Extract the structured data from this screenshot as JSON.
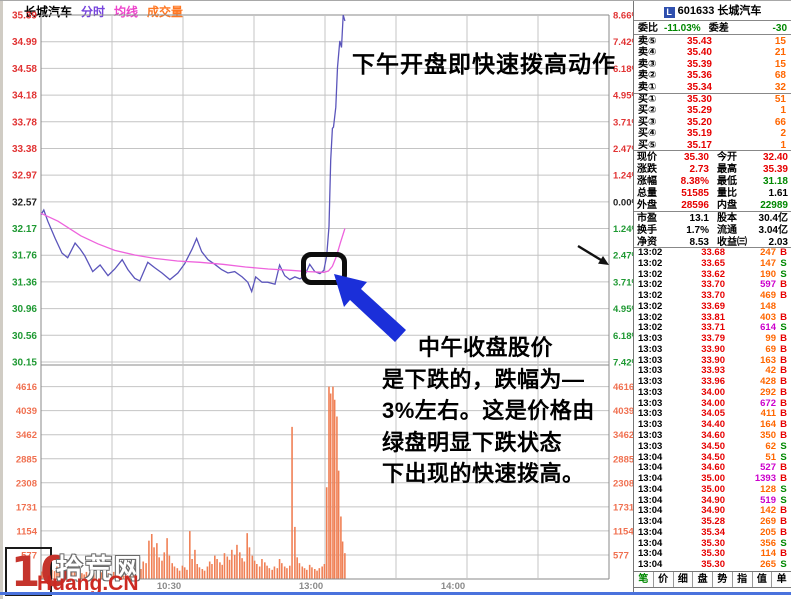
{
  "colors": {
    "axis_red": "#e13333",
    "axis_green": "#1f9933",
    "axis_black": "#222222",
    "vol_label": "#f07050",
    "time_label": "#8a8a8a",
    "grid": "#c4c4c4",
    "frame": "#8a8a8a",
    "price_line": "#5b55bb",
    "avg_line": "#ee63dd",
    "vol_bar": "#f08055",
    "red": "#e60000",
    "green": "#008800",
    "orange": "#ff6600",
    "purple": "#cc00cc",
    "black": "#000000"
  },
  "legend": [
    {
      "label": "长城汽车",
      "color": "#000000"
    },
    {
      "label": "分时",
      "color": "#7744dd"
    },
    {
      "label": "均线",
      "color": "#ee44cc"
    },
    {
      "label": "成交量",
      "color": "#ff7722"
    }
  ],
  "chart_data": {
    "type": "line",
    "title": "长城汽车 分时走势",
    "prev_close": 32.57,
    "price_axis": [
      {
        "price": "35.39",
        "pct": "8.66%",
        "tone": "red"
      },
      {
        "price": "34.99",
        "pct": "7.42%",
        "tone": "red"
      },
      {
        "price": "34.58",
        "pct": "6.18%",
        "tone": "red"
      },
      {
        "price": "34.18",
        "pct": "4.95%",
        "tone": "red"
      },
      {
        "price": "33.78",
        "pct": "3.71%",
        "tone": "red"
      },
      {
        "price": "33.38",
        "pct": "2.47%",
        "tone": "red"
      },
      {
        "price": "32.97",
        "pct": "1.24%",
        "tone": "red"
      },
      {
        "price": "32.57",
        "pct": "0.00%",
        "tone": "black"
      },
      {
        "price": "32.17",
        "pct": "1.24%",
        "tone": "green"
      },
      {
        "price": "31.76",
        "pct": "2.47%",
        "tone": "green"
      },
      {
        "price": "31.36",
        "pct": "3.71%",
        "tone": "green"
      },
      {
        "price": "30.96",
        "pct": "4.95%",
        "tone": "green"
      },
      {
        "price": "30.56",
        "pct": "6.18%",
        "tone": "green"
      },
      {
        "price": "30.15",
        "pct": "7.42%",
        "tone": "green"
      }
    ],
    "volume_axis": [
      "4616",
      "4039",
      "3462",
      "2885",
      "2308",
      "1731",
      "1154",
      "577"
    ],
    "time_labels": [
      {
        "text": "10:30",
        "grid": 2
      },
      {
        "text": "13:00",
        "grid": 4
      },
      {
        "text": "14:00",
        "grid": 6
      }
    ],
    "series": [
      {
        "name": "price",
        "points": [
          [
            0.0,
            32.38
          ],
          [
            0.005,
            32.45
          ],
          [
            0.012,
            32.28
          ],
          [
            0.025,
            32.02
          ],
          [
            0.037,
            31.8
          ],
          [
            0.047,
            31.73
          ],
          [
            0.06,
            31.95
          ],
          [
            0.069,
            31.86
          ],
          [
            0.077,
            31.76
          ],
          [
            0.091,
            31.52
          ],
          [
            0.104,
            31.62
          ],
          [
            0.118,
            31.46
          ],
          [
            0.13,
            31.56
          ],
          [
            0.143,
            31.7
          ],
          [
            0.153,
            31.55
          ],
          [
            0.165,
            31.42
          ],
          [
            0.174,
            31.38
          ],
          [
            0.188,
            31.66
          ],
          [
            0.2,
            31.58
          ],
          [
            0.213,
            31.5
          ],
          [
            0.227,
            31.4
          ],
          [
            0.241,
            31.5
          ],
          [
            0.253,
            31.64
          ],
          [
            0.266,
            31.86
          ],
          [
            0.274,
            32.02
          ],
          [
            0.283,
            31.82
          ],
          [
            0.294,
            31.7
          ],
          [
            0.306,
            31.63
          ],
          [
            0.318,
            31.55
          ],
          [
            0.329,
            31.5
          ],
          [
            0.341,
            31.52
          ],
          [
            0.354,
            31.44
          ],
          [
            0.364,
            31.36
          ],
          [
            0.371,
            31.22
          ],
          [
            0.378,
            31.44
          ],
          [
            0.389,
            31.36
          ],
          [
            0.399,
            31.36
          ],
          [
            0.412,
            31.33
          ],
          [
            0.42,
            31.62
          ],
          [
            0.429,
            31.46
          ],
          [
            0.438,
            31.4
          ],
          [
            0.447,
            31.44
          ],
          [
            0.456,
            31.41
          ],
          [
            0.464,
            31.46
          ],
          [
            0.473,
            31.63
          ],
          [
            0.482,
            31.52
          ],
          [
            0.491,
            31.49
          ],
          [
            0.498,
            31.54
          ],
          [
            0.503,
            31.76
          ],
          [
            0.507,
            32.2
          ],
          [
            0.51,
            33.2
          ],
          [
            0.513,
            33.68
          ],
          [
            0.515,
            33.7
          ],
          [
            0.519,
            34.0
          ],
          [
            0.522,
            34.6
          ],
          [
            0.526,
            35.0
          ],
          [
            0.529,
            34.9
          ],
          [
            0.532,
            35.39
          ],
          [
            0.535,
            35.3
          ]
        ]
      },
      {
        "name": "average",
        "points": [
          [
            0.0,
            32.4
          ],
          [
            0.03,
            32.28
          ],
          [
            0.07,
            32.06
          ],
          [
            0.1,
            31.94
          ],
          [
            0.13,
            31.84
          ],
          [
            0.165,
            31.77
          ],
          [
            0.2,
            31.72
          ],
          [
            0.24,
            31.68
          ],
          [
            0.28,
            31.66
          ],
          [
            0.32,
            31.63
          ],
          [
            0.36,
            31.59
          ],
          [
            0.4,
            31.56
          ],
          [
            0.44,
            31.54
          ],
          [
            0.47,
            31.52
          ],
          [
            0.498,
            31.51
          ],
          [
            0.506,
            31.53
          ],
          [
            0.513,
            31.6
          ],
          [
            0.52,
            31.75
          ],
          [
            0.527,
            31.95
          ],
          [
            0.535,
            32.17
          ]
        ]
      }
    ],
    "volume_bars": [
      [
        0.002,
        180
      ],
      [
        0.006,
        320
      ],
      [
        0.011,
        260
      ],
      [
        0.015,
        150
      ],
      [
        0.019,
        220
      ],
      [
        0.024,
        190
      ],
      [
        0.028,
        300
      ],
      [
        0.032,
        160
      ],
      [
        0.037,
        140
      ],
      [
        0.041,
        250
      ],
      [
        0.046,
        210
      ],
      [
        0.05,
        120
      ],
      [
        0.054,
        180
      ],
      [
        0.059,
        160
      ],
      [
        0.063,
        90
      ],
      [
        0.067,
        200
      ],
      [
        0.072,
        140
      ],
      [
        0.076,
        110
      ],
      [
        0.08,
        170
      ],
      [
        0.085,
        130
      ],
      [
        0.089,
        100
      ],
      [
        0.093,
        150
      ],
      [
        0.098,
        120
      ],
      [
        0.102,
        90
      ],
      [
        0.106,
        160
      ],
      [
        0.111,
        110
      ],
      [
        0.115,
        80
      ],
      [
        0.119,
        140
      ],
      [
        0.124,
        100
      ],
      [
        0.128,
        170
      ],
      [
        0.132,
        120
      ],
      [
        0.137,
        90
      ],
      [
        0.141,
        110
      ],
      [
        0.145,
        80
      ],
      [
        0.15,
        130
      ],
      [
        0.154,
        100
      ],
      [
        0.158,
        70
      ],
      [
        0.163,
        120
      ],
      [
        0.167,
        90
      ],
      [
        0.171,
        300
      ],
      [
        0.176,
        240
      ],
      [
        0.18,
        420
      ],
      [
        0.185,
        380
      ],
      [
        0.19,
        920
      ],
      [
        0.195,
        1080
      ],
      [
        0.199,
        760
      ],
      [
        0.204,
        860
      ],
      [
        0.208,
        520
      ],
      [
        0.213,
        440
      ],
      [
        0.217,
        640
      ],
      [
        0.222,
        980
      ],
      [
        0.226,
        560
      ],
      [
        0.231,
        380
      ],
      [
        0.235,
        300
      ],
      [
        0.24,
        260
      ],
      [
        0.244,
        200
      ],
      [
        0.249,
        320
      ],
      [
        0.253,
        280
      ],
      [
        0.257,
        220
      ],
      [
        0.262,
        1150
      ],
      [
        0.266,
        480
      ],
      [
        0.271,
        700
      ],
      [
        0.275,
        360
      ],
      [
        0.279,
        280
      ],
      [
        0.284,
        240
      ],
      [
        0.288,
        200
      ],
      [
        0.293,
        300
      ],
      [
        0.297,
        420
      ],
      [
        0.301,
        360
      ],
      [
        0.306,
        560
      ],
      [
        0.31,
        480
      ],
      [
        0.315,
        400
      ],
      [
        0.319,
        340
      ],
      [
        0.323,
        620
      ],
      [
        0.328,
        540
      ],
      [
        0.332,
        460
      ],
      [
        0.336,
        700
      ],
      [
        0.341,
        580
      ],
      [
        0.345,
        820
      ],
      [
        0.35,
        640
      ],
      [
        0.354,
        500
      ],
      [
        0.358,
        420
      ],
      [
        0.363,
        1100
      ],
      [
        0.367,
        760
      ],
      [
        0.372,
        560
      ],
      [
        0.376,
        440
      ],
      [
        0.38,
        360
      ],
      [
        0.385,
        300
      ],
      [
        0.389,
        480
      ],
      [
        0.394,
        400
      ],
      [
        0.398,
        320
      ],
      [
        0.402,
        260
      ],
      [
        0.407,
        220
      ],
      [
        0.411,
        300
      ],
      [
        0.416,
        260
      ],
      [
        0.42,
        480
      ],
      [
        0.424,
        380
      ],
      [
        0.429,
        300
      ],
      [
        0.433,
        260
      ],
      [
        0.438,
        320
      ],
      [
        0.442,
        3650
      ],
      [
        0.447,
        1250
      ],
      [
        0.451,
        520
      ],
      [
        0.455,
        380
      ],
      [
        0.46,
        300
      ],
      [
        0.464,
        260
      ],
      [
        0.468,
        220
      ],
      [
        0.473,
        340
      ],
      [
        0.477,
        280
      ],
      [
        0.482,
        240
      ],
      [
        0.486,
        200
      ],
      [
        0.49,
        260
      ],
      [
        0.495,
        300
      ],
      [
        0.499,
        360
      ],
      [
        0.503,
        2200
      ],
      [
        0.507,
        4616
      ],
      [
        0.51,
        4450
      ],
      [
        0.514,
        4616
      ],
      [
        0.517,
        4300
      ],
      [
        0.521,
        3900
      ],
      [
        0.524,
        2600
      ],
      [
        0.528,
        1500
      ],
      [
        0.531,
        900
      ],
      [
        0.535,
        620
      ]
    ]
  },
  "annotations": {
    "top_text": "下午开盘即快速拨高动作",
    "body_lines": [
      "中午收盘股价",
      "是下跌的，跌幅为—",
      "3%左右。这是价格由",
      "绿盘明显下跌状态",
      "下出现的快速拨高。"
    ]
  },
  "watermark": {
    "num": "10",
    "site": "拾荒网",
    "domain": "Huang.CN"
  },
  "panel": {
    "code": "601633",
    "name": "长城汽车",
    "weibi_label": "委比",
    "weibi_value": "-11.03%",
    "weicha_label": "委差",
    "weicha_value": "-30",
    "asks": [
      {
        "label": "卖⑤",
        "price": "35.43",
        "vol": "15"
      },
      {
        "label": "卖④",
        "price": "35.40",
        "vol": "21"
      },
      {
        "label": "卖③",
        "price": "35.39",
        "vol": "15"
      },
      {
        "label": "卖②",
        "price": "35.36",
        "vol": "68"
      },
      {
        "label": "卖①",
        "price": "35.34",
        "vol": "32"
      }
    ],
    "bids": [
      {
        "label": "买①",
        "price": "35.30",
        "vol": "51"
      },
      {
        "label": "买②",
        "price": "35.29",
        "vol": "1"
      },
      {
        "label": "买③",
        "price": "35.20",
        "vol": "66"
      },
      {
        "label": "买④",
        "price": "35.19",
        "vol": "2"
      },
      {
        "label": "买⑤",
        "price": "35.17",
        "vol": "1"
      }
    ],
    "info1": [
      {
        "l1": "现价",
        "v1": "35.30",
        "c1": "red",
        "l2": "今开",
        "v2": "32.40",
        "c2": "red"
      },
      {
        "l1": "涨跌",
        "v1": "2.73",
        "c1": "red",
        "l2": "最高",
        "v2": "35.39",
        "c2": "red"
      },
      {
        "l1": "涨幅",
        "v1": "8.38%",
        "c1": "red",
        "l2": "最低",
        "v2": "31.18",
        "c2": "green"
      },
      {
        "l1": "总量",
        "v1": "51585",
        "c1": "red",
        "l2": "量比",
        "v2": "1.61",
        "c2": "black"
      },
      {
        "l1": "外盘",
        "v1": "28596",
        "c1": "red",
        "l2": "内盘",
        "v2": "22989",
        "c2": "green"
      }
    ],
    "info2": [
      {
        "l1": "市盈",
        "v1": "13.1",
        "c1": "black",
        "l2": "股本",
        "v2": "30.4亿",
        "c2": "black"
      },
      {
        "l1": "换手",
        "v1": "1.7%",
        "c1": "black",
        "l2": "流通",
        "v2": "3.04亿",
        "c2": "black"
      },
      {
        "l1": "净资",
        "v1": "8.53",
        "c1": "black",
        "l2": "收益㈢",
        "v2": "2.03",
        "c2": "black"
      }
    ],
    "ticks": [
      {
        "t": "13:02",
        "p": "33.68",
        "v": "247",
        "vc": "orange",
        "s": "B"
      },
      {
        "t": "13:02",
        "p": "33.65",
        "v": "147",
        "vc": "orange",
        "s": "S"
      },
      {
        "t": "13:02",
        "p": "33.62",
        "v": "190",
        "vc": "orange",
        "s": "S"
      },
      {
        "t": "13:02",
        "p": "33.70",
        "v": "597",
        "vc": "purple",
        "s": "B"
      },
      {
        "t": "13:02",
        "p": "33.70",
        "v": "469",
        "vc": "orange",
        "s": "B"
      },
      {
        "t": "13:02",
        "p": "33.69",
        "v": "148",
        "vc": "orange",
        "s": ""
      },
      {
        "t": "13:02",
        "p": "33.81",
        "v": "403",
        "vc": "orange",
        "s": "B"
      },
      {
        "t": "13:02",
        "p": "33.71",
        "v": "614",
        "vc": "purple",
        "s": "S"
      },
      {
        "t": "13:03",
        "p": "33.79",
        "v": "99",
        "vc": "orange",
        "s": "B"
      },
      {
        "t": "13:03",
        "p": "33.90",
        "v": "69",
        "vc": "orange",
        "s": "B"
      },
      {
        "t": "13:03",
        "p": "33.90",
        "v": "163",
        "vc": "orange",
        "s": "B"
      },
      {
        "t": "13:03",
        "p": "33.93",
        "v": "42",
        "vc": "orange",
        "s": "B"
      },
      {
        "t": "13:03",
        "p": "33.96",
        "v": "428",
        "vc": "orange",
        "s": "B"
      },
      {
        "t": "13:03",
        "p": "34.00",
        "v": "292",
        "vc": "orange",
        "s": "B"
      },
      {
        "t": "13:03",
        "p": "34.00",
        "v": "672",
        "vc": "purple",
        "s": "B"
      },
      {
        "t": "13:03",
        "p": "34.05",
        "v": "411",
        "vc": "orange",
        "s": "B"
      },
      {
        "t": "13:03",
        "p": "34.40",
        "v": "164",
        "vc": "orange",
        "s": "B"
      },
      {
        "t": "13:03",
        "p": "34.60",
        "v": "350",
        "vc": "orange",
        "s": "B"
      },
      {
        "t": "13:03",
        "p": "34.50",
        "v": "62",
        "vc": "orange",
        "s": "S"
      },
      {
        "t": "13:04",
        "p": "34.50",
        "v": "51",
        "vc": "orange",
        "s": "S"
      },
      {
        "t": "13:04",
        "p": "34.60",
        "v": "527",
        "vc": "purple",
        "s": "B"
      },
      {
        "t": "13:04",
        "p": "35.00",
        "v": "1393",
        "vc": "purple",
        "s": "B"
      },
      {
        "t": "13:04",
        "p": "35.00",
        "v": "128",
        "vc": "orange",
        "s": "S"
      },
      {
        "t": "13:04",
        "p": "34.90",
        "v": "519",
        "vc": "purple",
        "s": "S"
      },
      {
        "t": "13:04",
        "p": "34.90",
        "v": "142",
        "vc": "orange",
        "s": "B"
      },
      {
        "t": "13:04",
        "p": "35.28",
        "v": "269",
        "vc": "orange",
        "s": "B"
      },
      {
        "t": "13:04",
        "p": "35.34",
        "v": "205",
        "vc": "orange",
        "s": "B"
      },
      {
        "t": "13:04",
        "p": "35.30",
        "v": "356",
        "vc": "orange",
        "s": "S"
      },
      {
        "t": "13:04",
        "p": "35.30",
        "v": "114",
        "vc": "orange",
        "s": "B"
      },
      {
        "t": "13:04",
        "p": "35.30",
        "v": "265",
        "vc": "orange",
        "s": "S"
      }
    ],
    "tabs": [
      "笔",
      "价",
      "细",
      "盘",
      "势",
      "指",
      "值",
      "单"
    ]
  }
}
